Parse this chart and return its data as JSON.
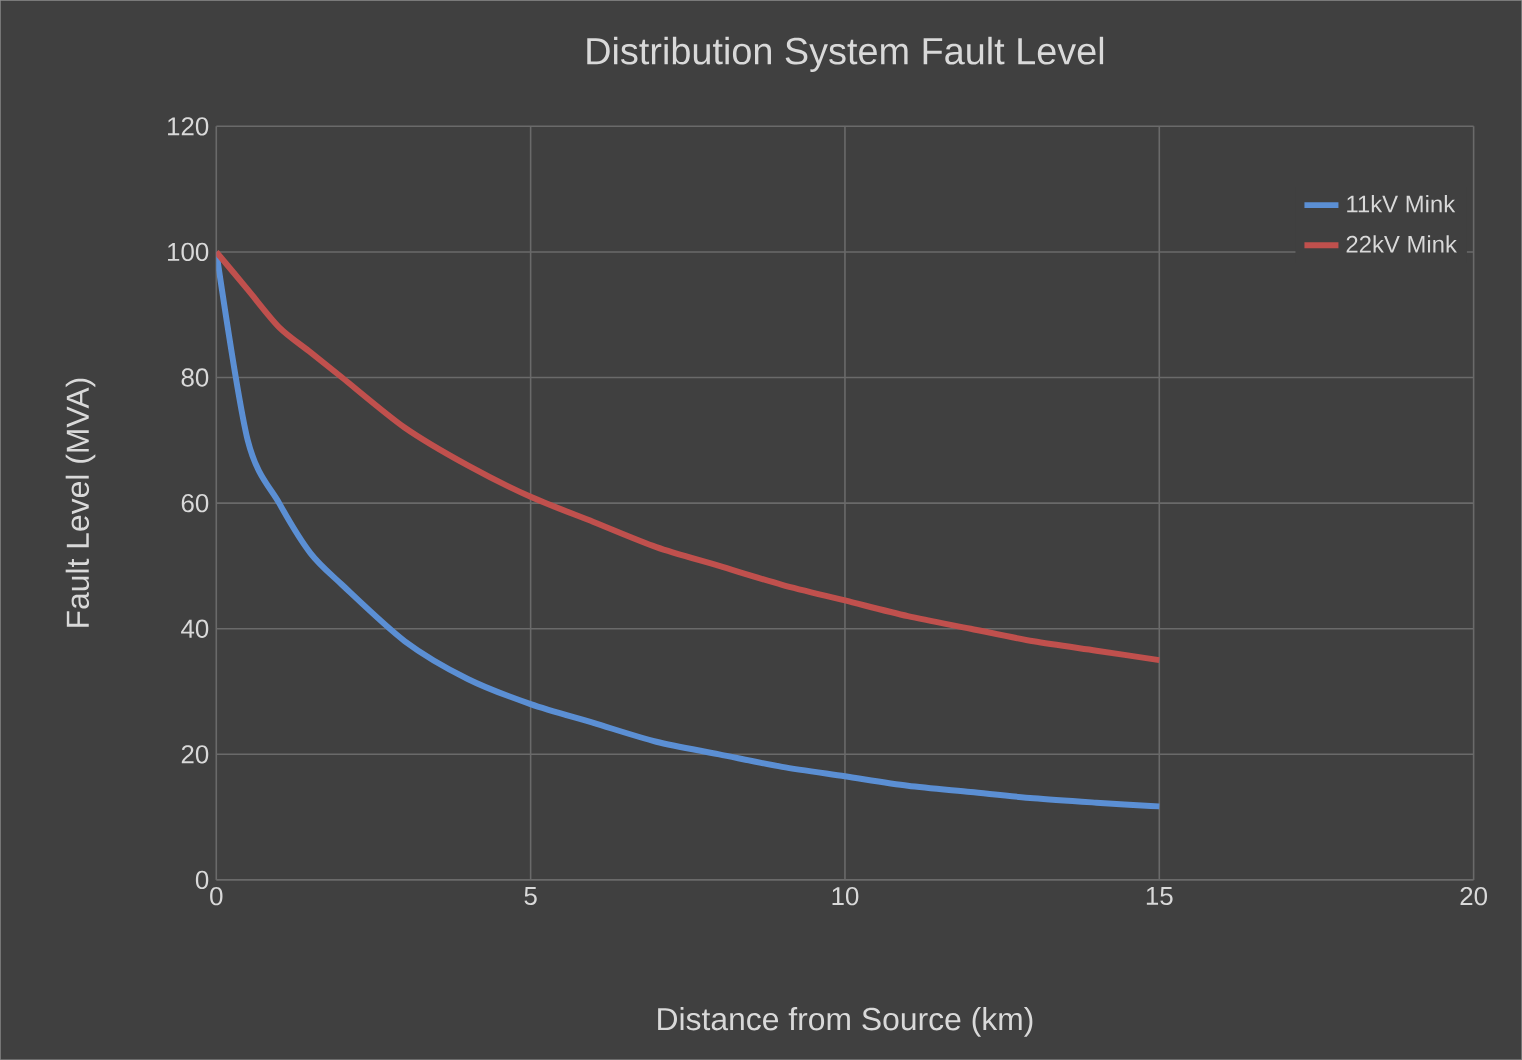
{
  "chart_data": {
    "type": "line",
    "title": "Distribution System Fault Level",
    "xlabel": "Distance from Source (km)",
    "ylabel": "Fault Level (MVA)",
    "x": [
      0,
      0.5,
      1,
      1.5,
      2,
      3,
      4,
      5,
      6,
      7,
      8,
      9,
      10,
      11,
      12,
      13,
      14,
      15
    ],
    "series": [
      {
        "name": "11kV Mink",
        "color": "#5b8fd4",
        "values": [
          100,
          70,
          60,
          52,
          47,
          38,
          32,
          28,
          25,
          22,
          20,
          18,
          16.5,
          15,
          14,
          13,
          12.3,
          11.7
        ]
      },
      {
        "name": "22kV Mink",
        "color": "#c0504d",
        "values": [
          100,
          94,
          88,
          84,
          80,
          72,
          66,
          61,
          57,
          53,
          50,
          47,
          44.5,
          42,
          40,
          38,
          36.5,
          35
        ]
      }
    ],
    "xlim": [
      0,
      20
    ],
    "ylim": [
      0,
      120
    ],
    "xticks": [
      0,
      5,
      10,
      15,
      20
    ],
    "yticks": [
      0,
      20,
      40,
      60,
      80,
      100,
      120
    ],
    "grid": true,
    "legend": "top right",
    "line_style": "solid"
  }
}
